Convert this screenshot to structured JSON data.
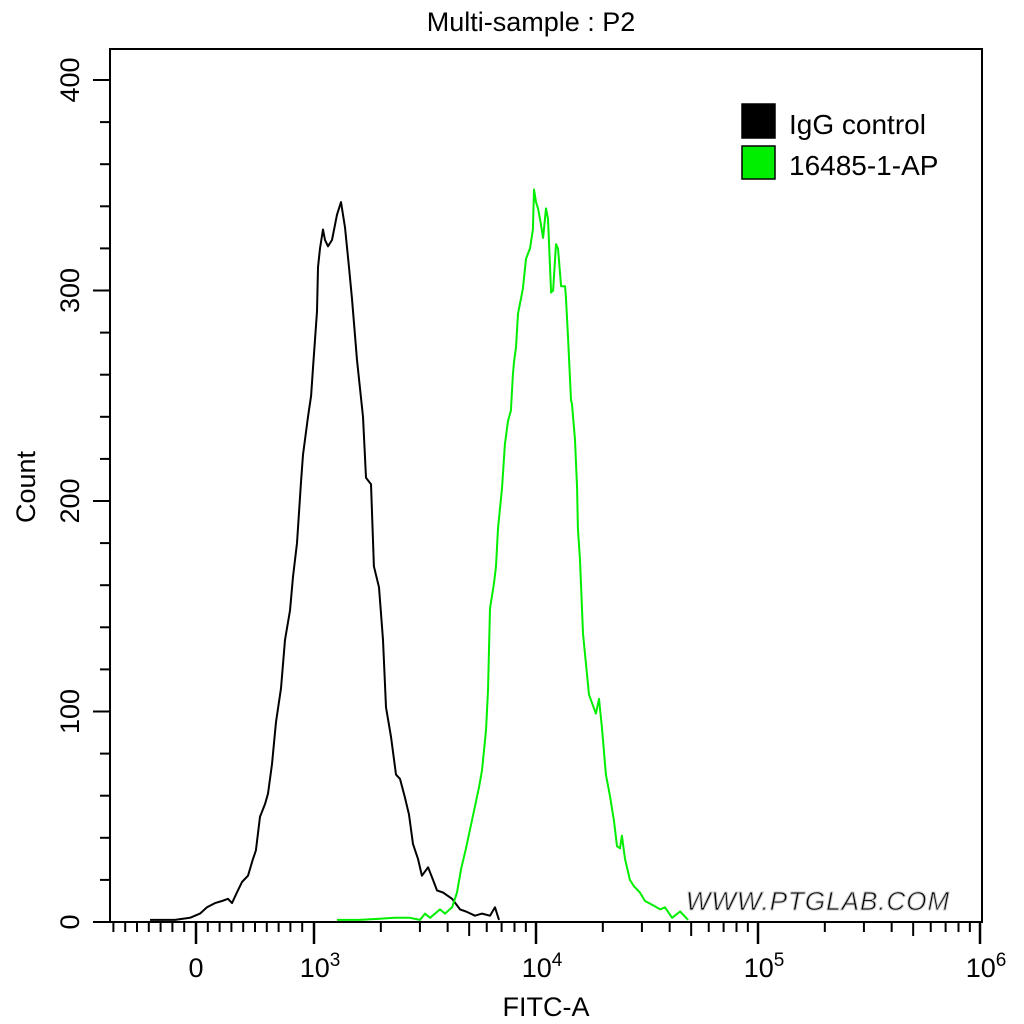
{
  "chart_data": {
    "type": "line",
    "title": "Multi-sample : P2",
    "xlabel": "FITC-A",
    "ylabel": "Count",
    "x_scale": "biexponential",
    "xlim": [
      -730,
      1000000
    ],
    "ylim": [
      0,
      415
    ],
    "grid": false,
    "legend_placement": "top-right",
    "y_ticks": [
      0,
      100,
      200,
      300,
      400
    ],
    "y_tick_labels": [
      "0",
      "100",
      "200",
      "300",
      "400"
    ],
    "x_ticks": [
      {
        "value": 0,
        "base": "0",
        "exp": ""
      },
      {
        "value": 1000,
        "base": "10",
        "exp": "3"
      },
      {
        "value": 10000,
        "base": "10",
        "exp": "4"
      },
      {
        "value": 100000,
        "base": "10",
        "exp": "5"
      },
      {
        "value": 1000000,
        "base": "10",
        "exp": "6"
      }
    ],
    "watermark": "WWW.PTGLAB.COM",
    "series": [
      {
        "name": "IgG control",
        "color": "#000000",
        "points": [
          [
            -390,
            1
          ],
          [
            -178,
            1
          ],
          [
            -51,
            2
          ],
          [
            34,
            4
          ],
          [
            93,
            7
          ],
          [
            161,
            9
          ],
          [
            220,
            10
          ],
          [
            271,
            11
          ],
          [
            305,
            9
          ],
          [
            347,
            14
          ],
          [
            390,
            19
          ],
          [
            441,
            22
          ],
          [
            483,
            30
          ],
          [
            508,
            34
          ],
          [
            542,
            50
          ],
          [
            585,
            56
          ],
          [
            610,
            61
          ],
          [
            644,
            75
          ],
          [
            678,
            95
          ],
          [
            720,
            111
          ],
          [
            754,
            134
          ],
          [
            797,
            148
          ],
          [
            822,
            164
          ],
          [
            856,
            180
          ],
          [
            890,
            209
          ],
          [
            907,
            222
          ],
          [
            949,
            240
          ],
          [
            975,
            250
          ],
          [
            992,
            264
          ],
          [
            1032,
            290
          ],
          [
            1042,
            311
          ],
          [
            1064,
            320
          ],
          [
            1098,
            329
          ],
          [
            1121,
            324
          ],
          [
            1156,
            321
          ],
          [
            1205,
            324
          ],
          [
            1269,
            336
          ],
          [
            1323,
            342
          ],
          [
            1379,
            330
          ],
          [
            1438,
            311
          ],
          [
            1483,
            296
          ],
          [
            1562,
            267
          ],
          [
            1663,
            240
          ],
          [
            1715,
            211
          ],
          [
            1806,
            208
          ],
          [
            1862,
            169
          ],
          [
            1963,
            159
          ],
          [
            2046,
            134
          ],
          [
            2110,
            102
          ],
          [
            2222,
            88
          ],
          [
            2340,
            70
          ],
          [
            2440,
            68
          ],
          [
            2570,
            59
          ],
          [
            2680,
            51
          ],
          [
            2792,
            37
          ],
          [
            2940,
            30
          ],
          [
            3063,
            22
          ],
          [
            3264,
            26
          ],
          [
            3435,
            20
          ],
          [
            3581,
            15
          ],
          [
            3811,
            14
          ],
          [
            4188,
            11
          ],
          [
            4545,
            6
          ],
          [
            4838,
            5
          ],
          [
            5309,
            3
          ],
          [
            5710,
            4
          ],
          [
            6207,
            3
          ],
          [
            6537,
            7
          ],
          [
            6813,
            1
          ]
        ]
      },
      {
        "name": "16485-1-AP",
        "color": "#00ee00",
        "points": [
          [
            1269,
            1
          ],
          [
            1611,
            1
          ],
          [
            2316,
            2
          ],
          [
            2706,
            2
          ],
          [
            3002,
            1
          ],
          [
            3162,
            4
          ],
          [
            3333,
            2
          ],
          [
            3695,
            6
          ],
          [
            3890,
            4
          ],
          [
            4188,
            7
          ],
          [
            4406,
            14
          ],
          [
            4594,
            25
          ],
          [
            4838,
            35
          ],
          [
            5045,
            44
          ],
          [
            5260,
            53
          ],
          [
            5535,
            64
          ],
          [
            5710,
            72
          ],
          [
            5955,
            91
          ],
          [
            6081,
            110
          ],
          [
            6207,
            149
          ],
          [
            6471,
            161
          ],
          [
            6607,
            169
          ],
          [
            6745,
            187
          ],
          [
            7031,
            206
          ],
          [
            7244,
            227
          ],
          [
            7482,
            238
          ],
          [
            7709,
            243
          ],
          [
            7870,
            260
          ],
          [
            7962,
            266
          ],
          [
            8128,
            273
          ],
          [
            8299,
            289
          ],
          [
            8551,
            296
          ],
          [
            8730,
            301
          ],
          [
            9016,
            315
          ],
          [
            9397,
            320
          ],
          [
            9683,
            329
          ],
          [
            9795,
            348
          ],
          [
            10000,
            342
          ],
          [
            10209,
            339
          ],
          [
            10422,
            334
          ],
          [
            10759,
            325
          ],
          [
            11091,
            339
          ],
          [
            11324,
            334
          ],
          [
            11690,
            299
          ],
          [
            11938,
            300
          ],
          [
            12303,
            322
          ],
          [
            12560,
            320
          ],
          [
            12970,
            302
          ],
          [
            13520,
            302
          ],
          [
            13650,
            296
          ],
          [
            13930,
            278
          ],
          [
            14380,
            248
          ],
          [
            14520,
            246
          ],
          [
            14990,
            229
          ],
          [
            15310,
            206
          ],
          [
            15450,
            187
          ],
          [
            15780,
            172
          ],
          [
            16290,
            137
          ],
          [
            17330,
            108
          ],
          [
            18620,
            99
          ],
          [
            19230,
            106
          ],
          [
            19820,
            92
          ],
          [
            20650,
            70
          ],
          [
            21530,
            60
          ],
          [
            22460,
            48
          ],
          [
            23170,
            36
          ],
          [
            23890,
            35
          ],
          [
            24380,
            41
          ],
          [
            25180,
            30
          ],
          [
            26490,
            20
          ],
          [
            27610,
            17
          ],
          [
            29380,
            14
          ],
          [
            30970,
            10
          ],
          [
            33650,
            8
          ],
          [
            36220,
            6
          ],
          [
            38110,
            7
          ],
          [
            41010,
            2
          ],
          [
            44570,
            5
          ],
          [
            48420,
            1
          ]
        ]
      }
    ]
  }
}
